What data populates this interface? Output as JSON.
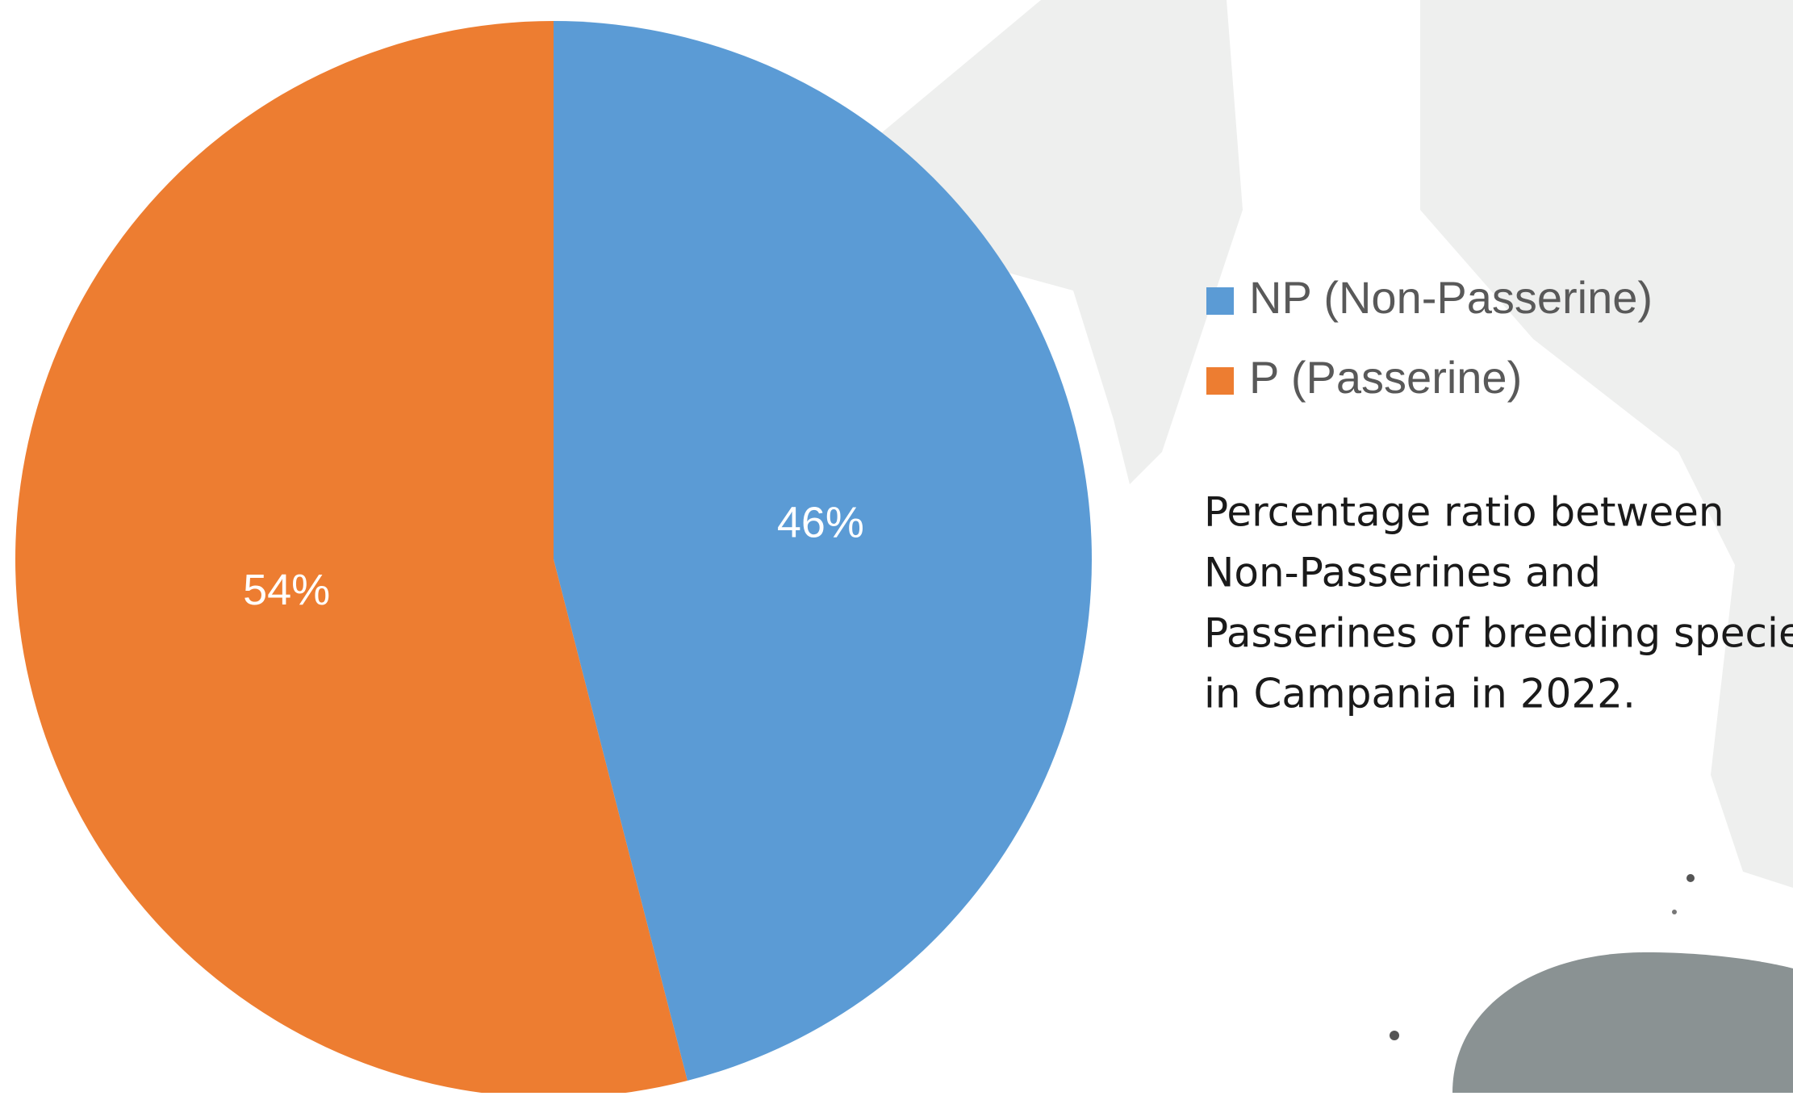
{
  "chart_data": {
    "type": "pie",
    "categories": [
      "NP (Non-Passerine)",
      "P (Passerine)"
    ],
    "values": [
      46,
      54
    ],
    "value_labels": [
      "46%",
      "54%"
    ],
    "colors": [
      "#5b9bd5",
      "#ed7d31"
    ],
    "title": [
      "Percentage ratio between",
      "Non-Passerines and",
      "Passerines of breeding species",
      "in Campania in 2022."
    ]
  }
}
